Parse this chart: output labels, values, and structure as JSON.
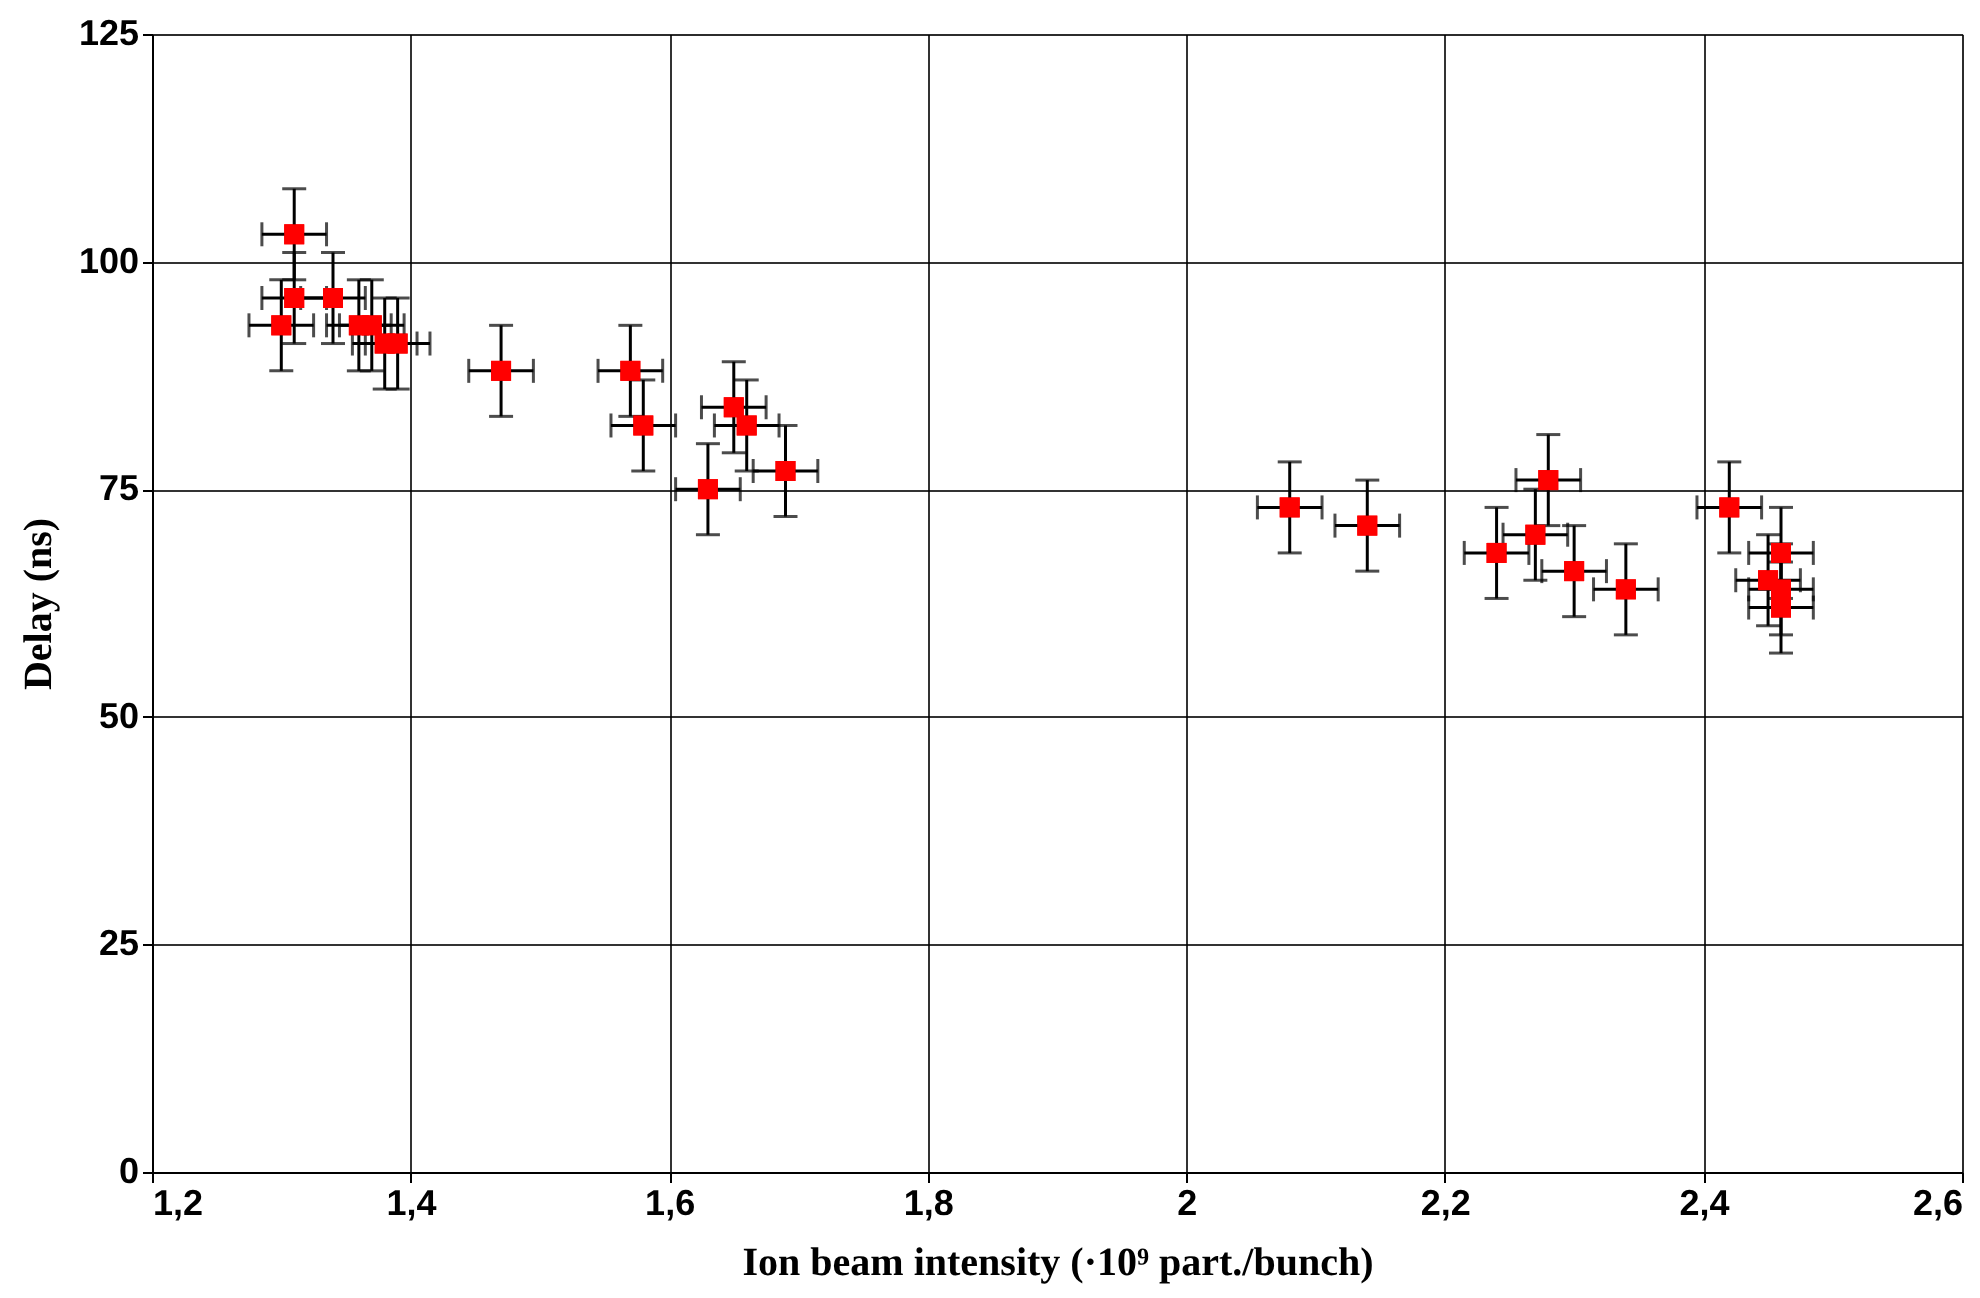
{
  "chart_data": {
    "type": "scatter",
    "xlabel": "Ion beam intensity  (·10⁹ part./bunch)",
    "ylabel": "Delay  (ns)",
    "x": [
      1.31,
      1.31,
      1.3,
      1.34,
      1.36,
      1.37,
      1.38,
      1.39,
      1.47,
      1.57,
      1.58,
      1.63,
      1.65,
      1.66,
      1.69,
      2.08,
      2.14,
      2.24,
      2.27,
      2.28,
      2.3,
      2.34,
      2.42,
      2.45,
      2.46,
      2.46,
      2.46
    ],
    "series": [
      {
        "color": "#ff0000",
        "values": [
          103,
          96,
          93,
          96,
          93,
          93,
          91,
          91,
          88,
          88,
          82,
          75,
          84,
          82,
          77,
          73,
          71,
          68,
          70,
          76,
          66,
          64,
          73,
          65,
          68,
          64,
          62
        ],
        "errors": [
          5,
          5,
          5,
          5,
          5,
          5,
          5,
          5,
          5,
          5,
          5,
          5,
          5,
          5,
          5,
          5,
          5,
          5,
          5,
          5,
          5,
          5,
          5,
          5,
          5,
          5,
          5
        ],
        "xerrors": [
          0.025,
          0.025,
          0.025,
          0.025,
          0.025,
          0.025,
          0.025,
          0.025,
          0.025,
          0.025,
          0.025,
          0.025,
          0.025,
          0.025,
          0.025,
          0.025,
          0.025,
          0.025,
          0.025,
          0.025,
          0.025,
          0.025,
          0.025,
          0.025,
          0.025,
          0.025,
          0.025
        ]
      }
    ],
    "marker": "square",
    "grid": true,
    "xlim": [
      1.2,
      2.6
    ],
    "xticks": [
      {
        "value": 1.2,
        "label": "1,2"
      },
      {
        "value": 1.4,
        "label": "1,4"
      },
      {
        "value": 1.6,
        "label": "1,6"
      },
      {
        "value": 1.8,
        "label": "1,8"
      },
      2,
      {
        "value": 2.2,
        "label": "2,2"
      },
      {
        "value": 2.4,
        "label": "2,4"
      },
      {
        "value": 2.6,
        "label": "2,6"
      }
    ],
    "ylim": [
      0,
      125
    ],
    "yticks": [
      0,
      25,
      50,
      75,
      100,
      125
    ]
  }
}
